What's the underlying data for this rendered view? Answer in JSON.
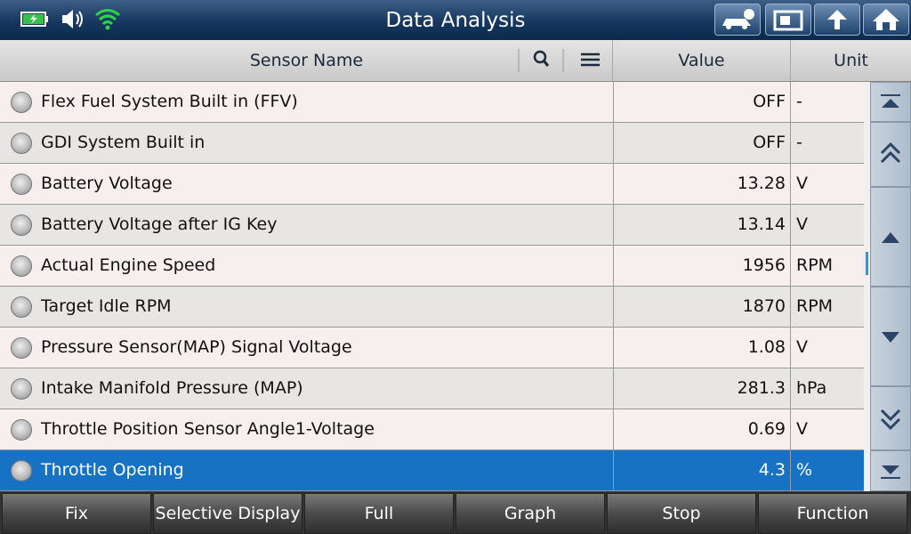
{
  "header": {
    "title": "Data Analysis"
  },
  "table": {
    "columns": [
      "Sensor Name",
      "Value",
      "Unit"
    ],
    "rows": [
      [
        "Flex Fuel System Built in (FFV)",
        "OFF",
        "-"
      ],
      [
        "GDI System Built in",
        "OFF",
        "-"
      ],
      [
        "Battery Voltage",
        "13.28",
        "V"
      ],
      [
        "Battery Voltage after IG Key",
        "13.14",
        "V"
      ],
      [
        "Actual Engine Speed",
        "1956",
        "RPM"
      ],
      [
        "Target Idle RPM",
        "1870",
        "RPM"
      ],
      [
        "Pressure Sensor(MAP) Signal Voltage",
        "1.08",
        "V"
      ],
      [
        "Intake Manifold Pressure (MAP)",
        "281.3",
        "hPa"
      ],
      [
        "Throttle Position Sensor Angle1-Voltage",
        "0.69",
        "V"
      ],
      [
        "Throttle Opening",
        "4.3",
        "%"
      ]
    ]
  },
  "footer": {
    "buttons": [
      "Fix",
      "Selective Display",
      "Full",
      "Graph",
      "Stop",
      "Function"
    ]
  }
}
